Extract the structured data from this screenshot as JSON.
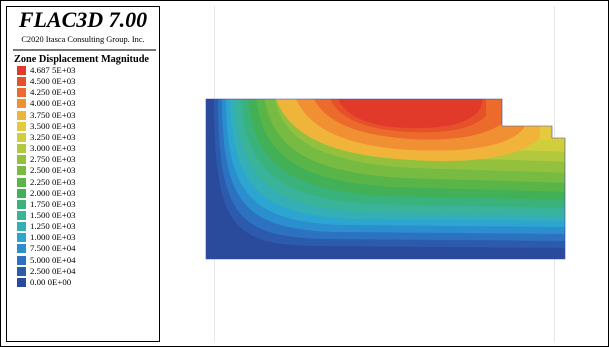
{
  "app": {
    "title": "FLAC3D 7.00",
    "copyright": "C2020 Itasca Consulting Group. Inc."
  },
  "legend": {
    "title": "Zone Displacement Magnitude",
    "items": [
      {
        "label": "4.687 5E+03",
        "color": "#e23a2a"
      },
      {
        "label": "4.500 0E+03",
        "color": "#e7512a"
      },
      {
        "label": "4.250 0E+03",
        "color": "#ec6b2c"
      },
      {
        "label": "4.000 0E+03",
        "color": "#f09032"
      },
      {
        "label": "3.750 0E+03",
        "color": "#f1b43b"
      },
      {
        "label": "3.500 0E+03",
        "color": "#e6c93c"
      },
      {
        "label": "3.250 0E+03",
        "color": "#cfcf3e"
      },
      {
        "label": "3.000 0E+03",
        "color": "#b2c83d"
      },
      {
        "label": "2.750 0E+03",
        "color": "#93c13e"
      },
      {
        "label": "2.500 0E+03",
        "color": "#77bb43"
      },
      {
        "label": "2.250 0E+03",
        "color": "#5ab548"
      },
      {
        "label": "2.000 0E+03",
        "color": "#41b056"
      },
      {
        "label": "1.750 0E+03",
        "color": "#3ab27c"
      },
      {
        "label": "1.500 0E+03",
        "color": "#39b39a"
      },
      {
        "label": "1.250 0E+03",
        "color": "#35afb6"
      },
      {
        "label": "1.000 0E+03",
        "color": "#2da5d1"
      },
      {
        "label": "7.500 0E+04",
        "color": "#2a8ecf"
      },
      {
        "label": "5.000 0E+04",
        "color": "#2c72c0"
      },
      {
        "label": "2.500 0E+04",
        "color": "#2c5aad"
      },
      {
        "label": "0.00 0E+00",
        "color": "#2a4a9c"
      }
    ]
  },
  "colors": {
    "border": "#000000",
    "background": "#ffffff",
    "gridline": "#e6e6e6"
  }
}
